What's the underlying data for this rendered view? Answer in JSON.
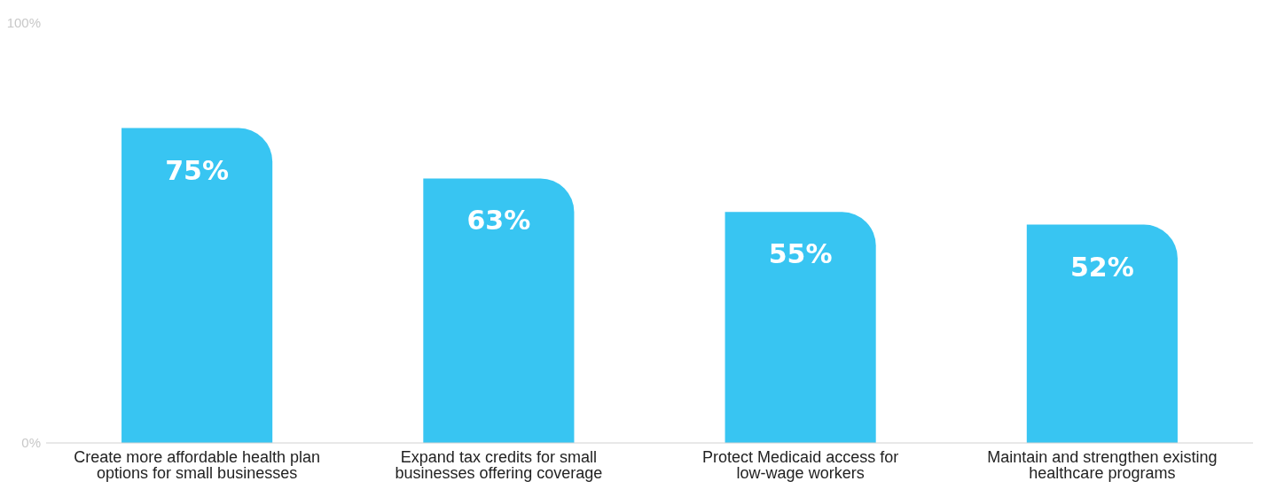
{
  "chart_data": {
    "type": "bar",
    "categories": [
      "Create more affordable health plan options for small businesses",
      "Expand tax credits for small businesses offering coverage",
      "Protect Medicaid access for low-wage workers",
      "Maintain and strengthen existing healthcare programs"
    ],
    "values": [
      75,
      63,
      55,
      52
    ],
    "value_labels": [
      "75%",
      "63%",
      "55%",
      "52%"
    ],
    "color": "#38c5f2",
    "ylim": [
      0,
      100
    ],
    "yticks": [
      {
        "value": 0,
        "label": "0%"
      },
      {
        "value": 100,
        "label": "100%"
      }
    ]
  }
}
